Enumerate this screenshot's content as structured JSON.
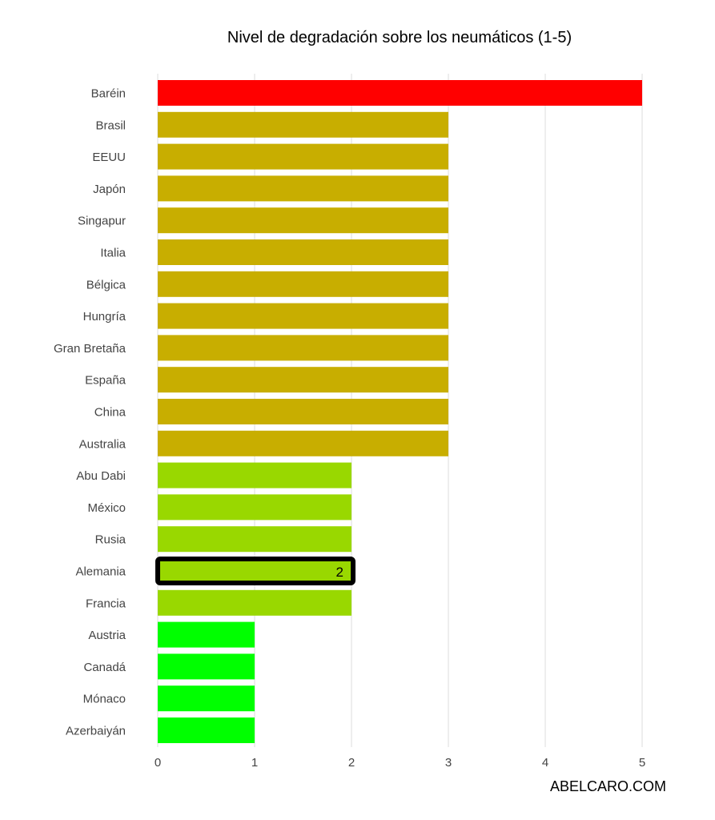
{
  "chart_data": {
    "type": "bar",
    "orientation": "horizontal",
    "title": "Nivel de degradación sobre los neumáticos (1-5)",
    "xlabel": "",
    "ylabel": "",
    "xlim": [
      0,
      5
    ],
    "x_ticks": [
      "0",
      "1",
      "2",
      "3",
      "4",
      "5"
    ],
    "grid": true,
    "categories": [
      "Baréin",
      "Brasil",
      "EEUU",
      "Japón",
      "Singapur",
      "Italia",
      "Bélgica",
      "Hungría",
      "Gran Bretaña",
      "España",
      "China",
      "Australia",
      "Abu Dabi",
      "México",
      "Rusia",
      "Alemania",
      "Francia",
      "Austria",
      "Canadá",
      "Mónaco",
      "Azerbaiyán"
    ],
    "values": [
      5,
      3,
      3,
      3,
      3,
      3,
      3,
      3,
      3,
      3,
      3,
      3,
      2,
      2,
      2,
      2,
      2,
      1,
      1,
      1,
      1
    ],
    "highlight": {
      "category": "Alemania",
      "label": "2"
    }
  },
  "colors": {
    "5": "#ff0000",
    "3": "#c8ae00",
    "2": "#99d800",
    "1": "#00ff00",
    "grid": "#e6e6e6",
    "highlight_border": "#000000"
  },
  "footer": {
    "text": "ABELCARO.COM"
  }
}
